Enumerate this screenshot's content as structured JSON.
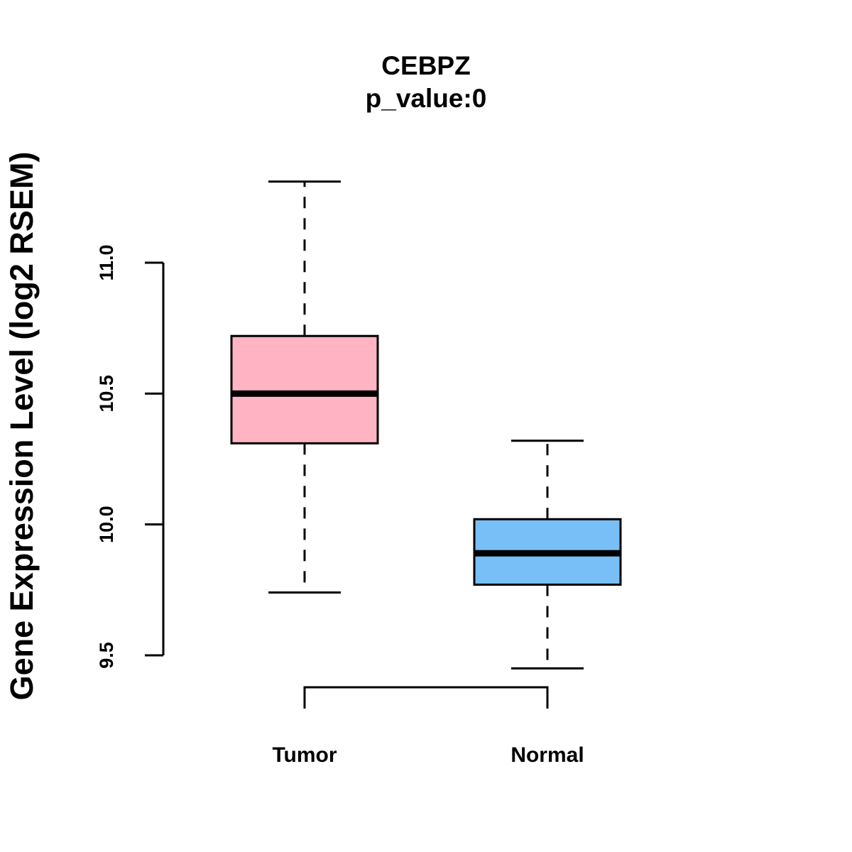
{
  "chart_data": {
    "type": "boxplot",
    "title": "CEBPZ",
    "subtitle": "p_value:0",
    "xlabel": "",
    "ylabel": "Gene Expression Level (log2 RSEM)",
    "ylim": [
      9.5,
      11.0
    ],
    "yticks": [
      9.5,
      10.0,
      10.5,
      11.0
    ],
    "ytick_labels": [
      "9.5",
      "10.0",
      "10.5",
      "11.0"
    ],
    "categories": [
      "Tumor",
      "Normal"
    ],
    "series": [
      {
        "name": "Tumor",
        "whisker_low": 9.74,
        "q1": 10.31,
        "median": 10.5,
        "q3": 10.72,
        "whisker_high": 11.31,
        "color": "#FFB3C3"
      },
      {
        "name": "Normal",
        "whisker_low": 9.45,
        "q1": 9.77,
        "median": 9.89,
        "q3": 10.02,
        "whisker_high": 10.32,
        "color": "#78BFF7"
      }
    ],
    "comparison_bracket": [
      "Tumor",
      "Normal"
    ],
    "grid": false,
    "legend": "none"
  }
}
